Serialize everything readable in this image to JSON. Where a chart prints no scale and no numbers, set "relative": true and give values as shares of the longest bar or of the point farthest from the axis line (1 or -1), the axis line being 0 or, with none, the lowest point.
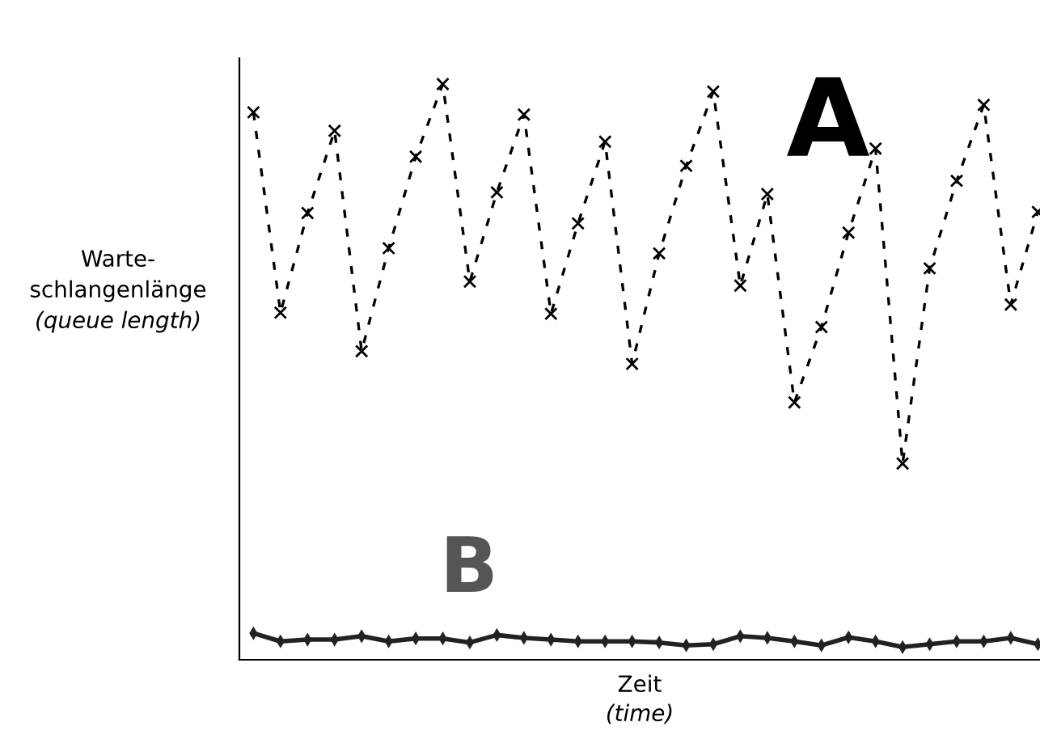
{
  "chart_data": {
    "type": "line",
    "relative": true,
    "xlabel": "Zeit\n(time)",
    "ylabel": "Warte-\nschlangenlänge\n(queue length)",
    "categories": [
      null,
      null,
      null,
      null,
      null,
      null,
      null,
      null,
      null,
      null,
      null,
      null,
      null,
      null,
      null,
      null,
      null,
      null,
      null,
      null,
      null,
      null,
      null,
      null,
      null,
      null,
      null,
      null,
      null,
      null
    ],
    "series": [
      {
        "color": "#000000",
        "line_style": "dashed",
        "marker": "cross",
        "values": [
          0.951,
          0.603,
          0.776,
          0.919,
          0.536,
          0.715,
          0.874,
          1.0,
          0.657,
          0.812,
          0.947,
          0.601,
          0.758,
          0.9,
          0.514,
          0.706,
          0.858,
          0.987,
          0.65,
          0.809,
          0.447,
          0.578,
          0.742,
          0.888,
          0.341,
          0.68,
          0.832,
          0.964,
          0.617,
          0.778
        ]
      },
      {
        "color": "#222222",
        "line_style": "solid",
        "marker": "diamond",
        "values": [
          0.046,
          0.032,
          0.035,
          0.035,
          0.041,
          0.032,
          0.037,
          0.037,
          0.03,
          0.043,
          0.038,
          0.035,
          0.032,
          0.032,
          0.032,
          0.03,
          0.025,
          0.027,
          0.041,
          0.038,
          0.032,
          0.025,
          0.039,
          0.032,
          0.022,
          0.027,
          0.032,
          0.032,
          0.038,
          0.027
        ]
      }
    ],
    "annotations": [
      "A",
      "B"
    ],
    "grid": false,
    "legend": false
  }
}
